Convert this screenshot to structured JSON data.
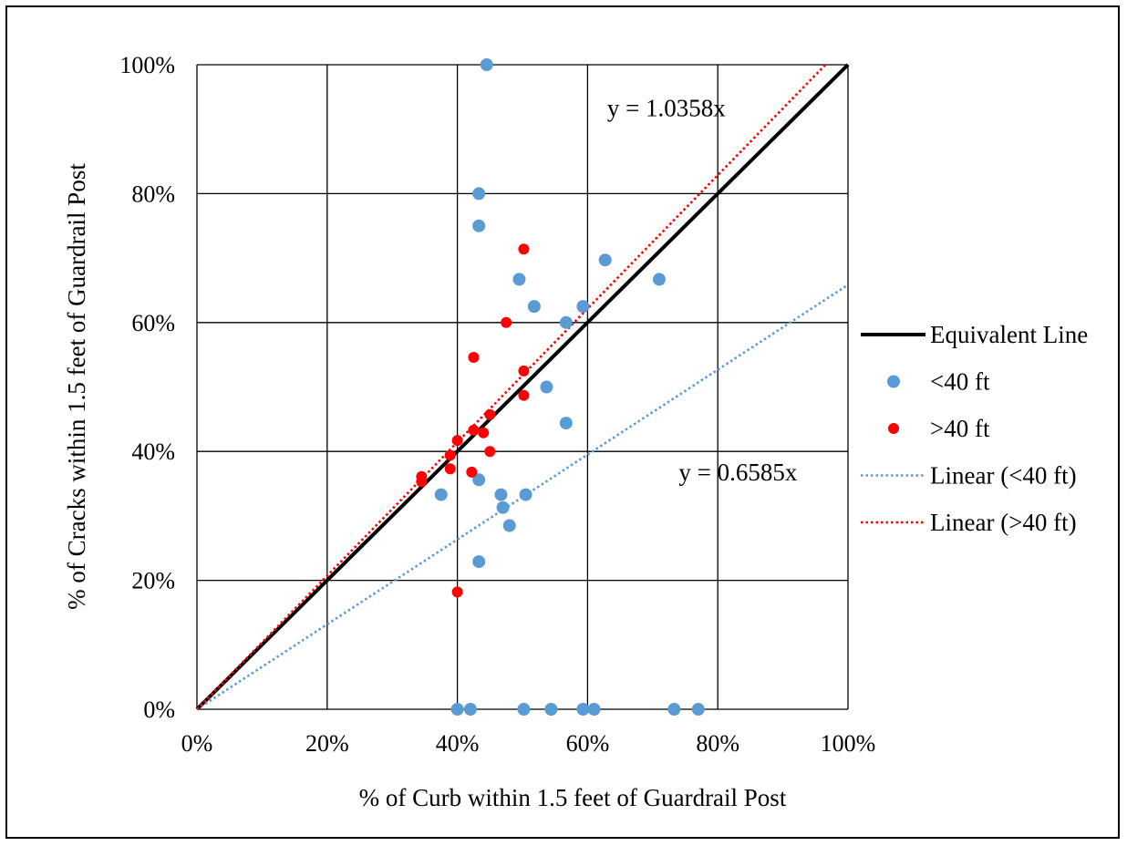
{
  "chart_data": {
    "type": "scatter",
    "title": "",
    "xlabel": "% of Curb within 1.5 feet of Guardrail Post",
    "ylabel": "% of Cracks  within 1.5 feet of Guardrail Post",
    "xlim": [
      0,
      100
    ],
    "ylim": [
      0,
      100
    ],
    "x_ticks": [
      0,
      20,
      40,
      60,
      80,
      100
    ],
    "y_ticks": [
      0,
      20,
      40,
      60,
      80,
      100
    ],
    "x_tick_labels": [
      "0%",
      "20%",
      "40%",
      "60%",
      "80%",
      "100%"
    ],
    "y_tick_labels": [
      "0%",
      "20%",
      "40%",
      "60%",
      "80%",
      "100%"
    ],
    "grid": true,
    "legend_position": "right",
    "series": [
      {
        "name": "<40 ft",
        "kind": "points",
        "color": "#5b9bd5",
        "points": [
          [
            44.5,
            100
          ],
          [
            43.3,
            80
          ],
          [
            43.3,
            75
          ],
          [
            62.7,
            69.7
          ],
          [
            71,
            66.7
          ],
          [
            49.5,
            66.7
          ],
          [
            51.8,
            62.5
          ],
          [
            59.3,
            62.5
          ],
          [
            56.7,
            60
          ],
          [
            53.7,
            50
          ],
          [
            56.7,
            44.4
          ],
          [
            37.5,
            33.3
          ],
          [
            43.3,
            35.6
          ],
          [
            46.7,
            33.3
          ],
          [
            50.5,
            33.3
          ],
          [
            47,
            31.3
          ],
          [
            48,
            28.5
          ],
          [
            43.3,
            22.9
          ],
          [
            40,
            0
          ],
          [
            42,
            0
          ],
          [
            50.2,
            0
          ],
          [
            54.4,
            0
          ],
          [
            59.3,
            0
          ],
          [
            61,
            0
          ],
          [
            73.3,
            0
          ],
          [
            77,
            0
          ]
        ]
      },
      {
        "name": ">40 ft",
        "kind": "points",
        "color": "#ff0000",
        "points": [
          [
            50.2,
            71.4
          ],
          [
            47.5,
            60
          ],
          [
            42.5,
            54.6
          ],
          [
            50.2,
            52.5
          ],
          [
            50.2,
            48.7
          ],
          [
            45,
            45.7
          ],
          [
            42.5,
            43.3
          ],
          [
            44,
            42.9
          ],
          [
            40,
            41.7
          ],
          [
            38.9,
            39.4
          ],
          [
            45,
            40
          ],
          [
            34.5,
            36.1
          ],
          [
            34.5,
            35.3
          ],
          [
            38.9,
            37.3
          ],
          [
            42.2,
            36.8
          ],
          [
            40,
            18.2
          ]
        ]
      },
      {
        "name": "Equivalent Line",
        "kind": "line",
        "color": "#000000",
        "slope": 1.0
      },
      {
        "name": "Linear (<40 ft)",
        "kind": "trendline",
        "color": "#5b9bd5",
        "slope": 0.6585
      },
      {
        "name": "Linear (>40 ft)",
        "kind": "trendline",
        "color": "#ff0000",
        "slope": 1.0358
      }
    ],
    "annotations": [
      {
        "text": "y = 1.0358x",
        "x": 63,
        "y": 92
      },
      {
        "text": "y = 0.6585x",
        "x": 74,
        "y": 35.5
      }
    ]
  }
}
